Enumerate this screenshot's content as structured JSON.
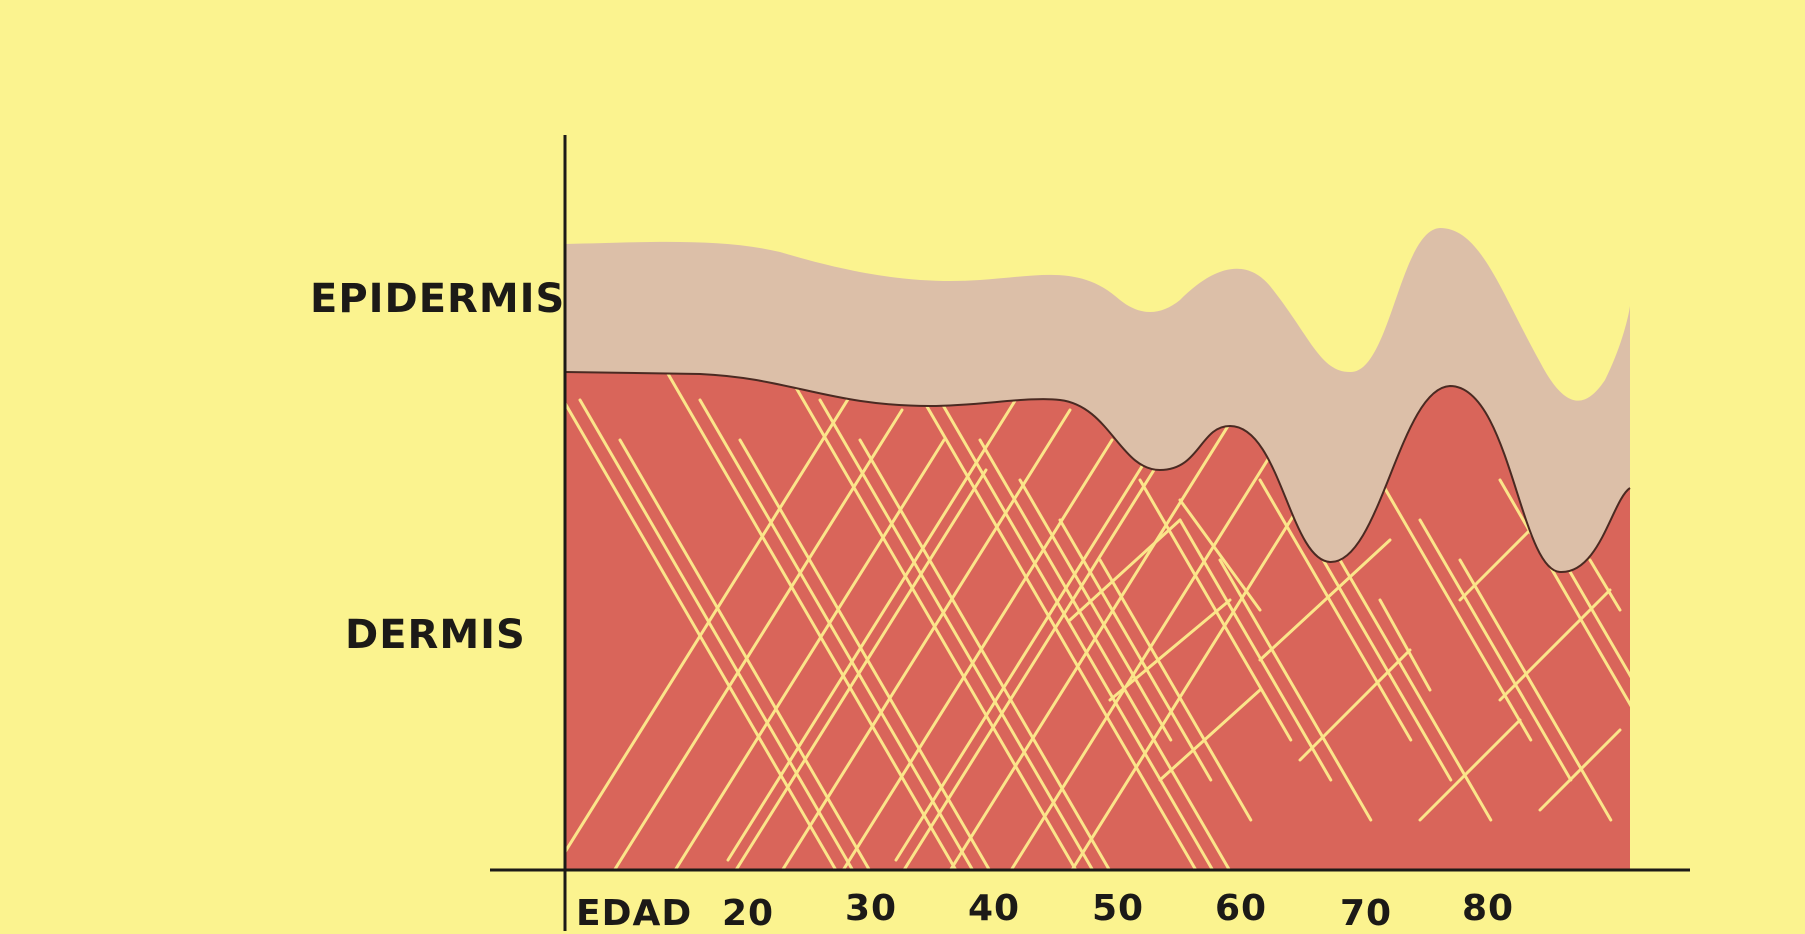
{
  "diagram": {
    "layers": {
      "epidermis": {
        "label": "EPIDERMIS",
        "color": "#dcbfa8"
      },
      "dermis": {
        "label": "DERMIS",
        "color": "#d9655a"
      }
    },
    "fiber_color": "#fbe58a",
    "axis": {
      "x_title": "EDAD",
      "ticks": [
        "20",
        "30",
        "40",
        "50",
        "60",
        "70",
        "80"
      ]
    }
  }
}
